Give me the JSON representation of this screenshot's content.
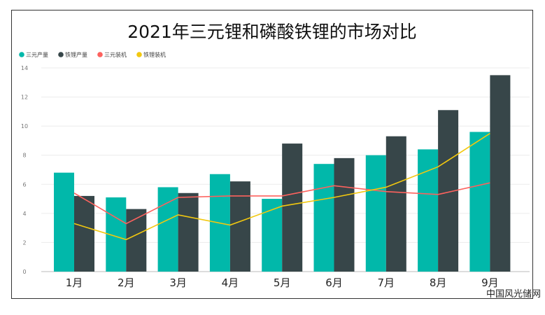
{
  "watermark": "中国风光储网",
  "chart_data": {
    "type": "bar",
    "title": "2021年三元锂和磷酸铁锂的市场对比",
    "categories": [
      "1月",
      "2月",
      "3月",
      "4月",
      "5月",
      "6月",
      "7月",
      "8月",
      "9月"
    ],
    "ylim": [
      0,
      14
    ],
    "yticks": [
      0,
      2,
      4,
      6,
      8,
      10,
      12,
      14
    ],
    "grid": true,
    "legend_position": "top-left",
    "series": [
      {
        "name": "三元产量",
        "type": "bar",
        "color": "#01b8aa",
        "values": [
          6.8,
          5.1,
          5.8,
          6.7,
          5.0,
          7.4,
          8.0,
          8.4,
          9.6
        ]
      },
      {
        "name": "铁锂产量",
        "type": "bar",
        "color": "#374649",
        "values": [
          5.2,
          4.3,
          5.4,
          6.2,
          8.8,
          7.8,
          9.3,
          11.1,
          13.5
        ]
      },
      {
        "name": "三元装机",
        "type": "line",
        "color": "#fd625e",
        "values": [
          5.4,
          3.3,
          5.1,
          5.2,
          5.2,
          5.9,
          5.5,
          5.3,
          6.1
        ]
      },
      {
        "name": "铁锂装机",
        "type": "line",
        "color": "#f2c80f",
        "values": [
          3.3,
          2.2,
          3.9,
          3.2,
          4.5,
          5.1,
          5.8,
          7.2,
          9.5
        ]
      }
    ]
  }
}
